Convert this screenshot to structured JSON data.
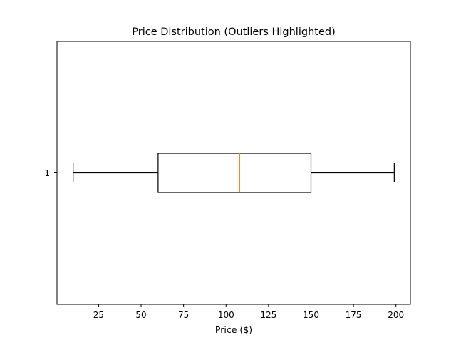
{
  "chart_data": {
    "type": "boxplot",
    "title": "Price Distribution (Outliers Highlighted)",
    "xlabel": "Price ($)",
    "ylabel": "",
    "orientation": "horizontal",
    "xlim": [
      0.5,
      208.5
    ],
    "x_ticks": [
      25,
      50,
      75,
      100,
      125,
      150,
      175,
      200
    ],
    "y_ticks": [
      "1"
    ],
    "grid": false,
    "boxes": [
      {
        "label": "1",
        "whisker_low": 10,
        "q1": 60,
        "median": 108,
        "q3": 150,
        "whisker_high": 199,
        "outliers": []
      }
    ],
    "colors": {
      "box": "#000000",
      "median": "#ff7f0e",
      "axes": "#000000",
      "background": "#ffffff"
    }
  }
}
